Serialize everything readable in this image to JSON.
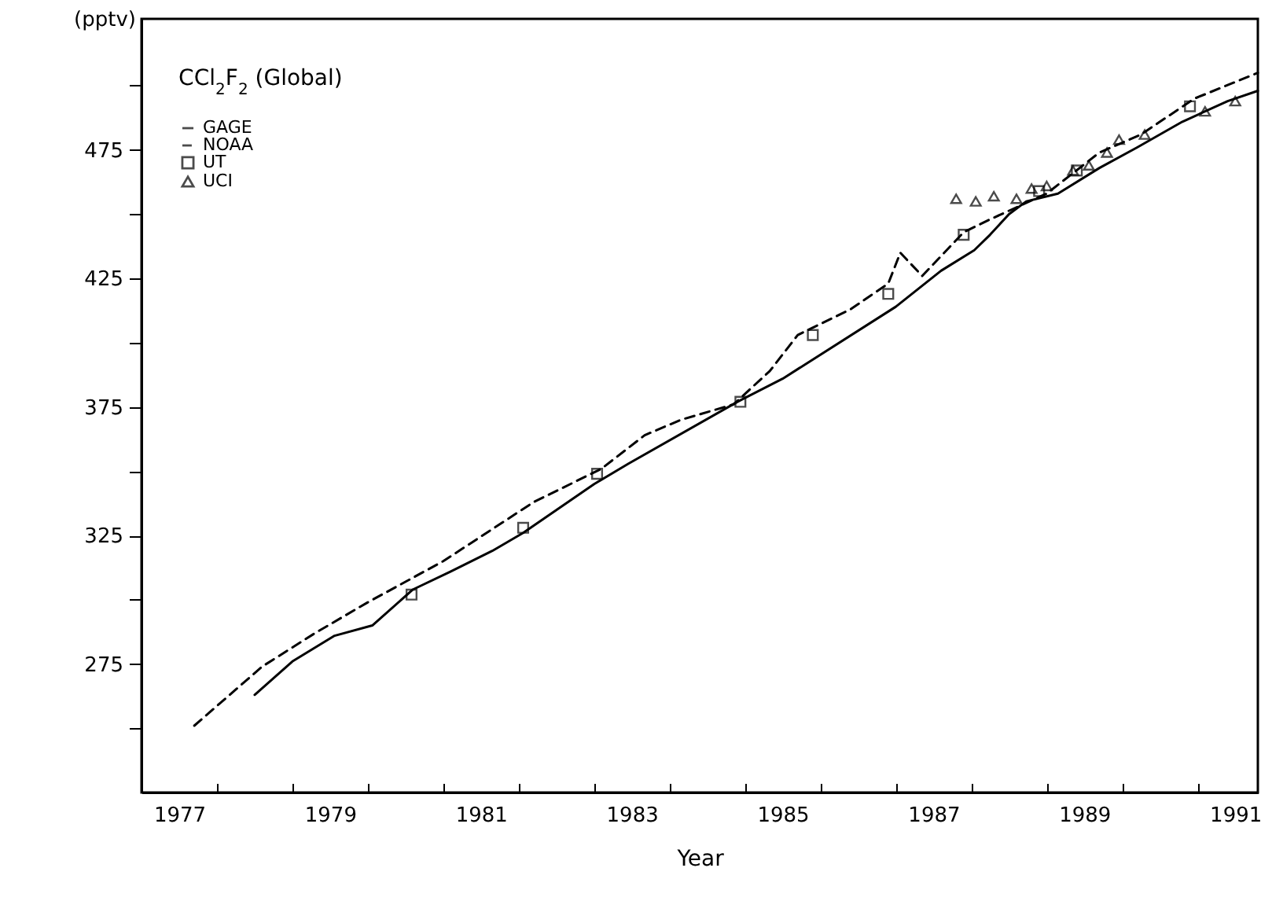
{
  "chart_data": {
    "type": "line",
    "title": "CCl$_{2}$F$_{2}$ (Global)",
    "xlabel": "Year",
    "ylabel": "(pptv)",
    "xlim": [
      1977,
      1991.8
    ],
    "ylim": [
      225,
      526
    ],
    "xticks": [
      {
        "value": 1977.5,
        "label": "1977"
      },
      {
        "value": 1978,
        "label": null
      },
      {
        "value": 1979,
        "label": null
      },
      {
        "value": 1979.5,
        "label": "1979"
      },
      {
        "value": 1980,
        "label": null
      },
      {
        "value": 1981,
        "label": null
      },
      {
        "value": 1981.5,
        "label": "1981"
      },
      {
        "value": 1982,
        "label": null
      },
      {
        "value": 1983,
        "label": null
      },
      {
        "value": 1983.5,
        "label": "1983"
      },
      {
        "value": 1984,
        "label": null
      },
      {
        "value": 1985,
        "label": null
      },
      {
        "value": 1985.5,
        "label": "1985"
      },
      {
        "value": 1986,
        "label": null
      },
      {
        "value": 1987,
        "label": null
      },
      {
        "value": 1987.5,
        "label": "1987"
      },
      {
        "value": 1988,
        "label": null
      },
      {
        "value": 1989,
        "label": null
      },
      {
        "value": 1989.5,
        "label": "1989"
      },
      {
        "value": 1990,
        "label": null
      },
      {
        "value": 1991,
        "label": null
      },
      {
        "value": 1991.5,
        "label": "1991"
      }
    ],
    "yticks": [
      {
        "value": 250,
        "label": null
      },
      275,
      {
        "value": 300,
        "label": null
      },
      325,
      {
        "value": 350,
        "label": null
      },
      375,
      {
        "value": 400,
        "label": null
      },
      425,
      {
        "value": 450,
        "label": null
      },
      475,
      {
        "value": 500,
        "label": null
      }
    ],
    "grid": false,
    "legend": "top left",
    "series": [
      {
        "name": "GAGE",
        "line_style": "solid",
        "marker": "none",
        "color": "#000000",
        "x": [
          1978.5,
          1979.0,
          1979.56,
          1980.06,
          1980.6,
          1981.1,
          1981.65,
          1982.06,
          1983.0,
          1983.46,
          1984.9,
          1985.5,
          1987.0,
          1987.6,
          1988.04,
          1988.25,
          1988.5,
          1988.73,
          1989.15,
          1989.7,
          1990.2,
          1990.8,
          1991.4,
          1991.8
        ],
        "values": [
          263,
          276,
          286,
          290,
          304,
          311,
          319,
          326,
          345,
          353,
          377,
          386,
          414,
          428,
          436,
          442,
          450,
          455,
          458,
          468,
          476,
          486,
          494,
          498
        ]
      },
      {
        "name": "NOAA",
        "line_style": "dashed",
        "marker": "none",
        "color": "#000000",
        "x": [
          1977.7,
          1978.6,
          1979.3,
          1980.0,
          1981.0,
          1982.2,
          1983.1,
          1983.67,
          1984.15,
          1984.85,
          1985.33,
          1985.7,
          1986.4,
          1986.9,
          1987.06,
          1987.35,
          1987.9,
          1988.25,
          1989.0,
          1989.7,
          1990.25,
          1990.96,
          1991.8
        ],
        "values": [
          251,
          274,
          287,
          299,
          315,
          338,
          351,
          364,
          370,
          376,
          389,
          403,
          413,
          423,
          435,
          426,
          443,
          448,
          458,
          474,
          481,
          495,
          505
        ]
      },
      {
        "name": "UT",
        "type": "scatter",
        "marker": "square",
        "color": "#000000",
        "x": [
          1980.58,
          1982.06,
          1983.04,
          1984.94,
          1985.9,
          1986.9,
          1987.9,
          1988.9,
          1989.4,
          1990.9
        ],
        "values": [
          302,
          328,
          349,
          377,
          403,
          419,
          442,
          459,
          467,
          492
        ]
      },
      {
        "name": "UCI",
        "type": "scatter",
        "marker": "triangle",
        "color": "#000000",
        "x": [
          1987.8,
          1988.06,
          1988.3,
          1988.6,
          1988.8,
          1989.0,
          1989.35,
          1989.56,
          1989.8,
          1989.96,
          1990.3,
          1991.1,
          1991.5
        ],
        "values": [
          456,
          455,
          457,
          456,
          460,
          461,
          467,
          469,
          474,
          479,
          481,
          490,
          494
        ]
      }
    ]
  }
}
